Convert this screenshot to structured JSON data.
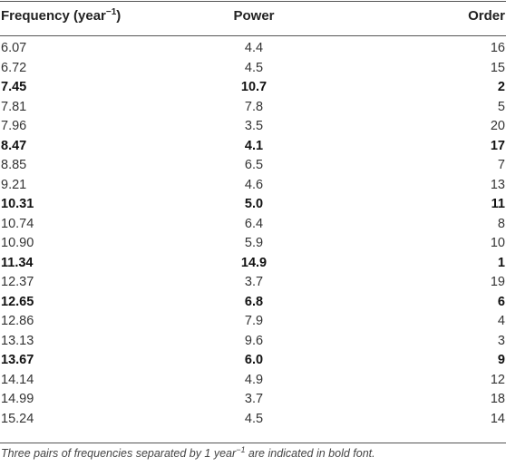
{
  "table": {
    "headers": {
      "frequency": "Frequency (year",
      "frequency_sup": "−1",
      "frequency_close": ")",
      "power": "Power",
      "order": "Order"
    },
    "rows": [
      {
        "frequency": "6.07",
        "power": "4.4",
        "order": "16",
        "bold": false
      },
      {
        "frequency": "6.72",
        "power": "4.5",
        "order": "15",
        "bold": false
      },
      {
        "frequency": "7.45",
        "power": "10.7",
        "order": "2",
        "bold": true
      },
      {
        "frequency": "7.81",
        "power": "7.8",
        "order": "5",
        "bold": false
      },
      {
        "frequency": "7.96",
        "power": "3.5",
        "order": "20",
        "bold": false
      },
      {
        "frequency": "8.47",
        "power": "4.1",
        "order": "17",
        "bold": true
      },
      {
        "frequency": "8.85",
        "power": "6.5",
        "order": "7",
        "bold": false
      },
      {
        "frequency": "9.21",
        "power": "4.6",
        "order": "13",
        "bold": false
      },
      {
        "frequency": "10.31",
        "power": "5.0",
        "order": "11",
        "bold": true
      },
      {
        "frequency": "10.74",
        "power": "6.4",
        "order": "8",
        "bold": false
      },
      {
        "frequency": "10.90",
        "power": "5.9",
        "order": "10",
        "bold": false
      },
      {
        "frequency": "11.34",
        "power": "14.9",
        "order": "1",
        "bold": true
      },
      {
        "frequency": "12.37",
        "power": "3.7",
        "order": "19",
        "bold": false
      },
      {
        "frequency": "12.65",
        "power": "6.8",
        "order": "6",
        "bold": true
      },
      {
        "frequency": "12.86",
        "power": "7.9",
        "order": "4",
        "bold": false
      },
      {
        "frequency": "13.13",
        "power": "9.6",
        "order": "3",
        "bold": false
      },
      {
        "frequency": "13.67",
        "power": "6.0",
        "order": "9",
        "bold": true
      },
      {
        "frequency": "14.14",
        "power": "4.9",
        "order": "12",
        "bold": false
      },
      {
        "frequency": "14.99",
        "power": "3.7",
        "order": "18",
        "bold": false
      },
      {
        "frequency": "15.24",
        "power": "4.5",
        "order": "14",
        "bold": false
      }
    ]
  },
  "footnote": {
    "before": "Three pairs of frequencies separated by 1 year",
    "sup": "−1",
    "after": " are indicated in bold font."
  }
}
